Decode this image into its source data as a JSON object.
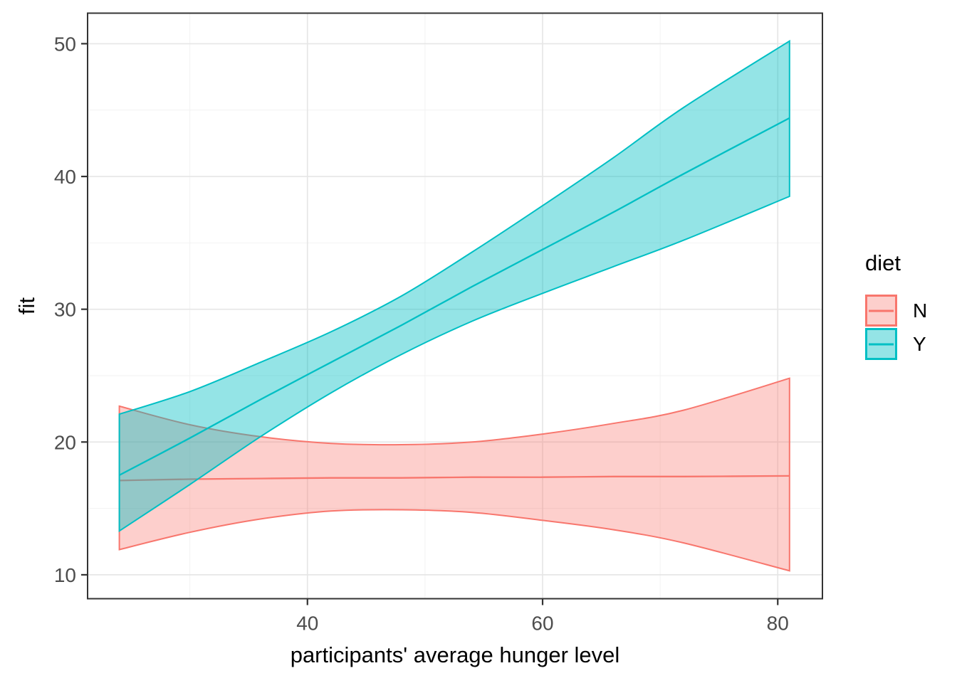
{
  "figure": {
    "x_axis_title": "participants' average hunger level",
    "y_axis_title": "fit",
    "legend": {
      "title": "diet",
      "entries": [
        {
          "label": "N"
        },
        {
          "label": "Y"
        }
      ]
    }
  },
  "chart_data": {
    "type": "line",
    "title": "",
    "xlabel": "participants' average hunger level",
    "ylabel": "fit",
    "legend_title": "diet",
    "legend_position": "right",
    "grid": "on",
    "xlim": [
      21.3,
      83.8
    ],
    "ylim": [
      8.2,
      52.3
    ],
    "x_ticks": [
      40,
      60,
      80
    ],
    "y_ticks": [
      10,
      20,
      30,
      40,
      50
    ],
    "x_minor_ticks": [
      30,
      50,
      70
    ],
    "y_minor_ticks": [
      15,
      25,
      35,
      45
    ],
    "x": [
      24,
      30,
      36,
      42,
      48,
      54,
      60,
      66,
      72,
      81
    ],
    "series": [
      {
        "name": "N",
        "color": "#F8766D",
        "fill": "rgba(248,118,109,0.35)",
        "values": [
          17.1,
          17.2,
          17.25,
          17.3,
          17.3,
          17.35,
          17.35,
          17.4,
          17.4,
          17.45
        ],
        "upper": [
          22.7,
          21.3,
          20.4,
          19.9,
          19.8,
          20.0,
          20.6,
          21.4,
          22.4,
          24.8
        ],
        "lower": [
          11.9,
          13.2,
          14.2,
          14.8,
          14.9,
          14.7,
          14.1,
          13.4,
          12.4,
          10.3
        ]
      },
      {
        "name": "Y",
        "color": "#00BFC4",
        "fill": "rgba(0,191,196,0.42)",
        "values": [
          17.5,
          20.3,
          23.2,
          26.0,
          28.8,
          31.7,
          34.5,
          37.3,
          40.2,
          44.4
        ],
        "upper": [
          22.1,
          23.8,
          26.0,
          28.3,
          31.0,
          34.3,
          37.8,
          41.4,
          45.2,
          50.2
        ],
        "lower": [
          13.3,
          16.8,
          20.4,
          23.7,
          26.6,
          29.1,
          31.2,
          33.2,
          35.2,
          38.5
        ]
      }
    ],
    "theme": {
      "panel_background": "#FFFFFF",
      "panel_border": "#343434",
      "grid_major": "#E6E6E6",
      "grid_minor": "#F2F2F2",
      "tick_color": "#333333",
      "tick_label_color": "#4D4D4D"
    }
  }
}
